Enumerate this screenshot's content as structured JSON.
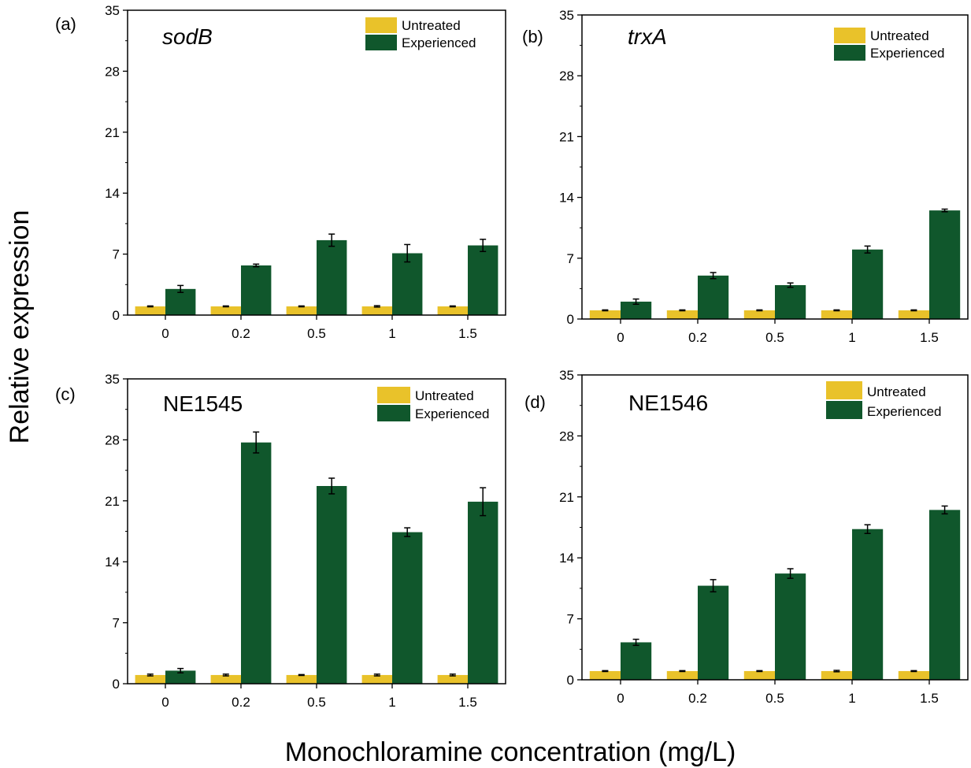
{
  "figure": {
    "ylabel": "Relative expression",
    "xlabel": "Monochloramine concentration (mg/L)"
  },
  "colors": {
    "untreated": "#e9c22a",
    "experienced": "#10572c",
    "error_bar": "#000000",
    "axis": "#000000"
  },
  "chart_data": [
    {
      "type": "bar",
      "panel": "(a)",
      "title": "sodB",
      "title_italic": true,
      "categories": [
        "0",
        "0.2",
        "0.5",
        "1",
        "1.5"
      ],
      "series": [
        {
          "name": "Untreated",
          "values": [
            1,
            1,
            1,
            1,
            1
          ],
          "errors": [
            0.05,
            0.05,
            0.05,
            0.08,
            0.05
          ]
        },
        {
          "name": "Experienced",
          "values": [
            3.0,
            5.7,
            8.6,
            7.1,
            8.0
          ],
          "errors": [
            0.4,
            0.15,
            0.7,
            1.0,
            0.7
          ]
        }
      ],
      "xlabel": "",
      "ylabel": "",
      "ylim": [
        0,
        35
      ],
      "yticks": [
        0,
        7,
        14,
        21,
        28,
        35
      ],
      "legend": [
        "Untreated",
        "Experienced"
      ],
      "legend_position": "top-right",
      "grid": false
    },
    {
      "type": "bar",
      "panel": "(b)",
      "title": "trxA",
      "title_italic": true,
      "categories": [
        "0",
        "0.2",
        "0.5",
        "1",
        "1.5"
      ],
      "series": [
        {
          "name": "Untreated",
          "values": [
            1,
            1,
            1,
            1,
            1
          ],
          "errors": [
            0.05,
            0.05,
            0.05,
            0.05,
            0.05
          ]
        },
        {
          "name": "Experienced",
          "values": [
            2.0,
            5.0,
            3.9,
            8.0,
            12.5
          ],
          "errors": [
            0.3,
            0.35,
            0.25,
            0.4,
            0.15
          ]
        }
      ],
      "xlabel": "",
      "ylabel": "",
      "ylim": [
        0,
        35
      ],
      "yticks": [
        0,
        7,
        14,
        21,
        28,
        35
      ],
      "legend": [
        "Untreated",
        "Experienced"
      ],
      "legend_position": "top-right",
      "grid": false
    },
    {
      "type": "bar",
      "panel": "(c)",
      "title": "NE1545",
      "title_italic": false,
      "categories": [
        "0",
        "0.2",
        "0.5",
        "1",
        "1.5"
      ],
      "series": [
        {
          "name": "Untreated",
          "values": [
            1,
            1,
            1,
            1,
            1
          ],
          "errors": [
            0.1,
            0.1,
            0.05,
            0.1,
            0.1
          ]
        },
        {
          "name": "Experienced",
          "values": [
            1.5,
            27.7,
            22.7,
            17.4,
            20.9
          ],
          "errors": [
            0.25,
            1.2,
            0.9,
            0.5,
            1.6
          ]
        }
      ],
      "xlabel": "",
      "ylabel": "",
      "ylim": [
        0,
        35
      ],
      "yticks": [
        0,
        7,
        14,
        21,
        28,
        35
      ],
      "legend": [
        "Untreated",
        "Experienced"
      ],
      "legend_position": "top-right",
      "grid": false
    },
    {
      "type": "bar",
      "panel": "(d)",
      "title": "NE1546",
      "title_italic": false,
      "categories": [
        "0",
        "0.2",
        "0.5",
        "1",
        "1.5"
      ],
      "series": [
        {
          "name": "Untreated",
          "values": [
            1,
            1,
            1,
            1,
            1
          ],
          "errors": [
            0.05,
            0.05,
            0.05,
            0.08,
            0.05
          ]
        },
        {
          "name": "Experienced",
          "values": [
            4.3,
            10.8,
            12.2,
            17.3,
            19.5
          ],
          "errors": [
            0.35,
            0.7,
            0.55,
            0.5,
            0.45
          ]
        }
      ],
      "xlabel": "",
      "ylabel": "",
      "ylim": [
        0,
        35
      ],
      "yticks": [
        0,
        7,
        14,
        21,
        28,
        35
      ],
      "legend": [
        "Untreated",
        "Experienced"
      ],
      "legend_position": "top-right",
      "grid": false
    }
  ]
}
